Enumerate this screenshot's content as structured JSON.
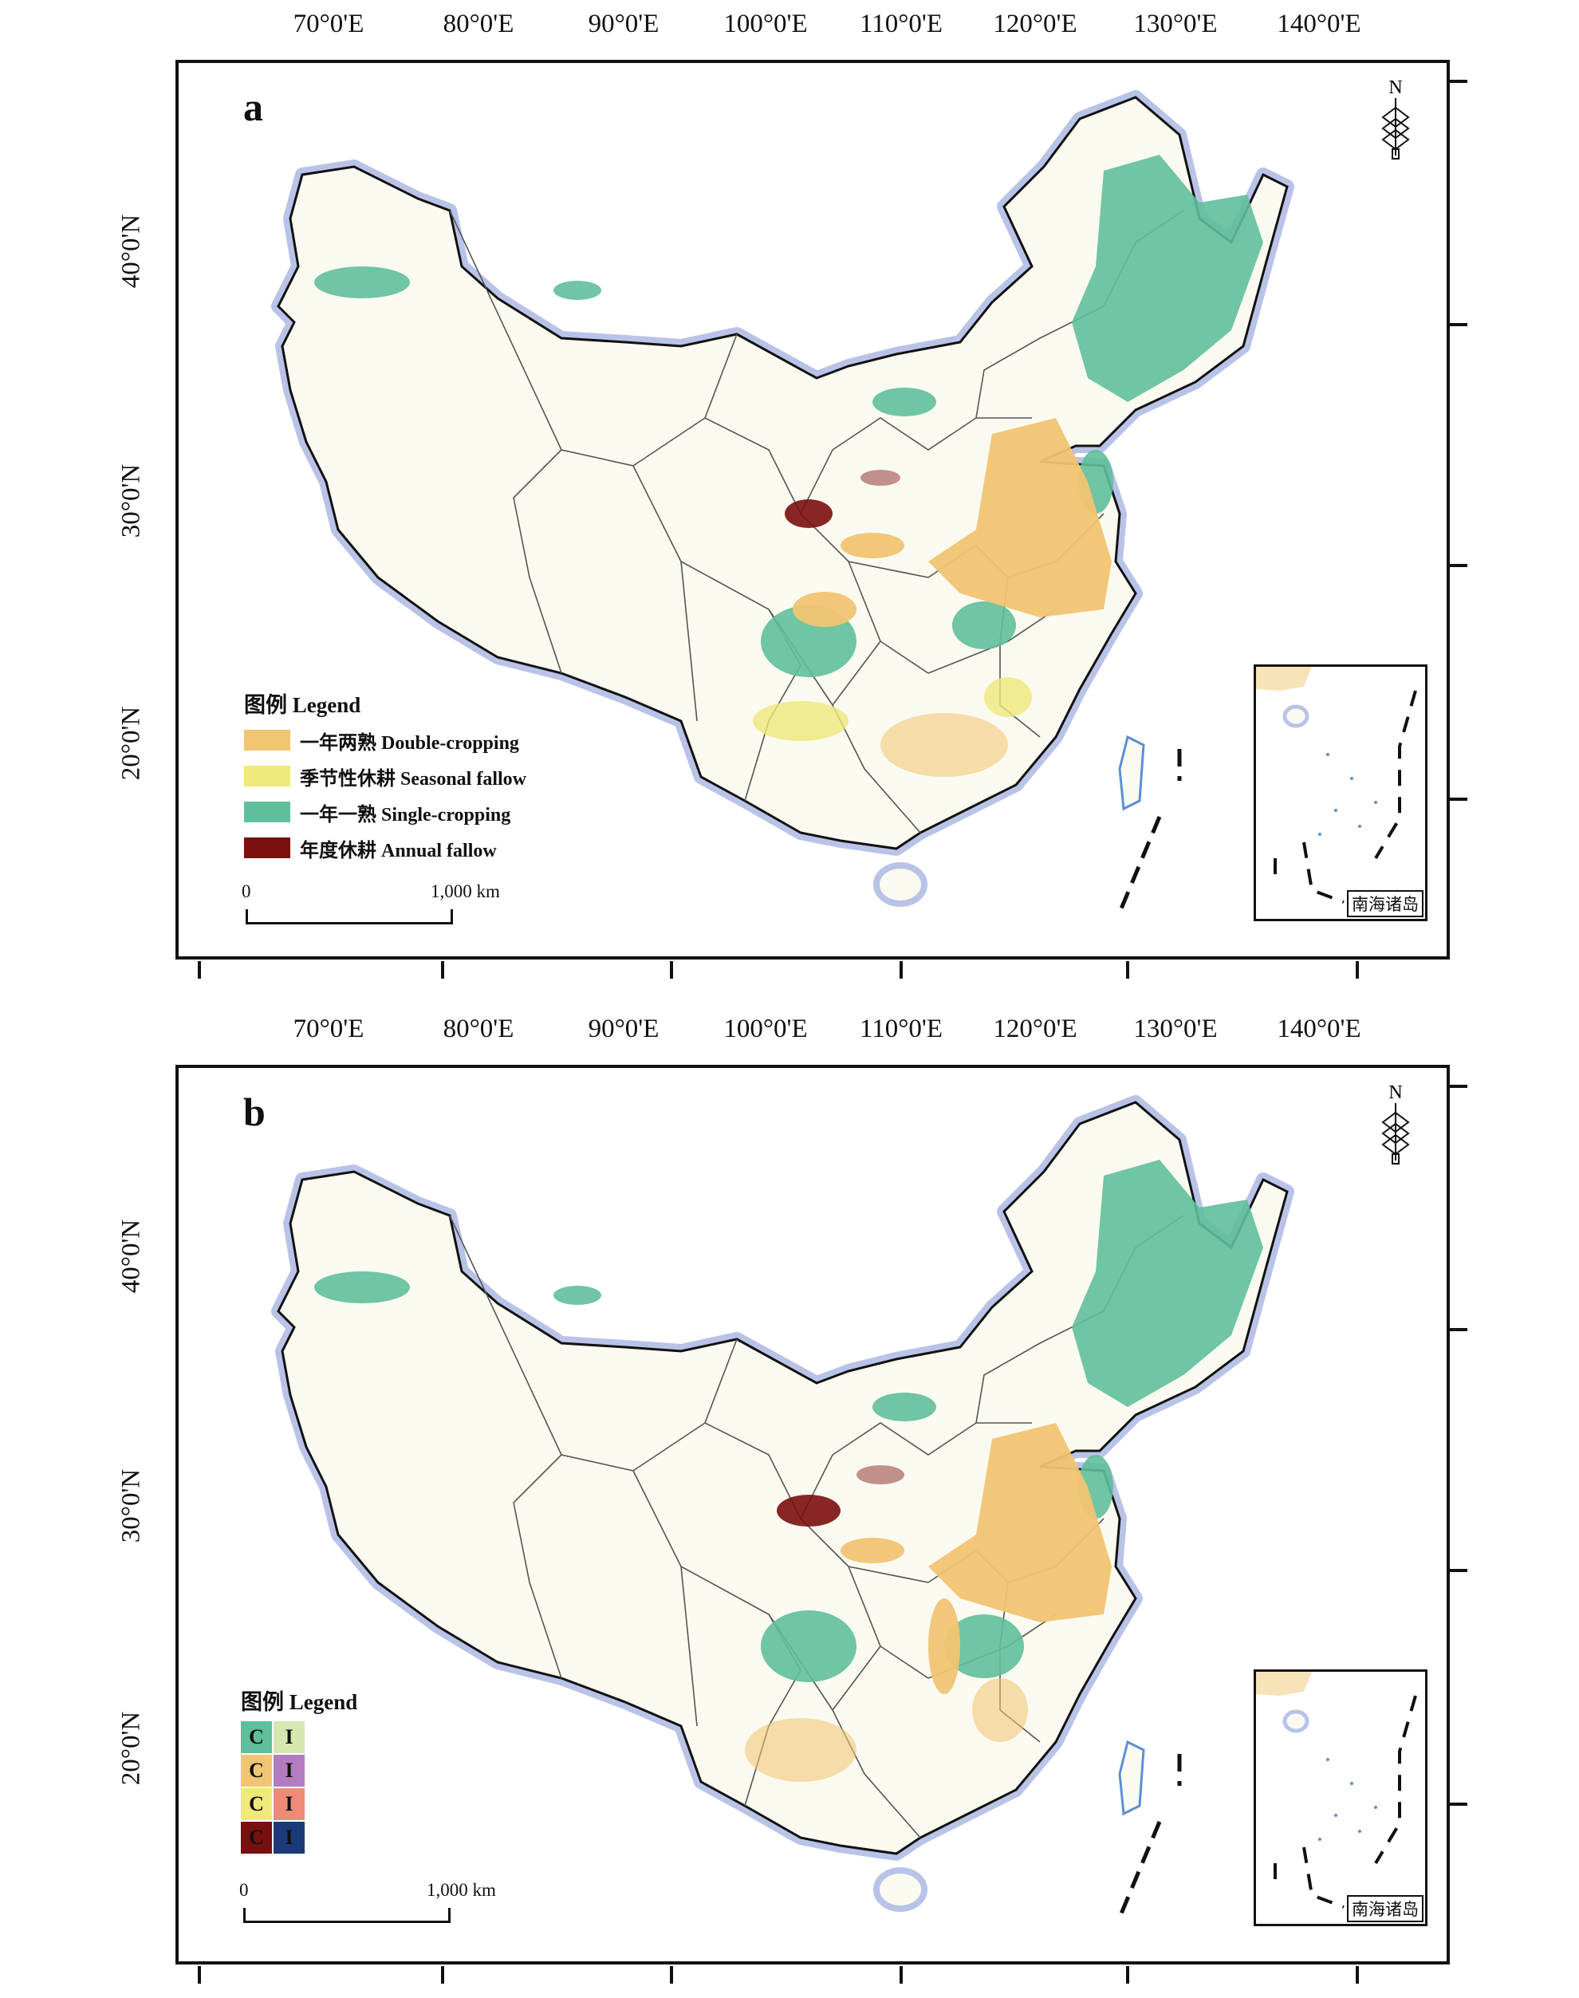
{
  "panels": [
    {
      "letter": "a",
      "lon_labels": [
        "70°0'E",
        "80°0'E",
        "90°0'E",
        "100°0'E",
        "110°0'E",
        "120°0'E",
        "130°0'E",
        "140°0'E"
      ],
      "lat_labels": [
        "40°0'N",
        "30°0'N",
        "20°0'N"
      ],
      "north_arrow": "N",
      "legend": {
        "title": "图例 Legend",
        "items": [
          {
            "label": "一年两熟 Double-cropping",
            "color": "#f2c572"
          },
          {
            "label": "季节性休耕 Seasonal fallow",
            "color": "#efe97a"
          },
          {
            "label": "一年一熟 Single-cropping",
            "color": "#5fbf9b"
          },
          {
            "label": "年度休耕 Annual fallow",
            "color": "#7a0f0f"
          }
        ]
      },
      "scale_bar": {
        "start": "0",
        "end": "1,000 km"
      },
      "inset_label": "南海诸岛"
    },
    {
      "letter": "b",
      "lon_labels": [
        "70°0'E",
        "80°0'E",
        "90°0'E",
        "100°0'E",
        "110°0'E",
        "120°0'E",
        "130°0'E",
        "140°0'E"
      ],
      "lat_labels": [
        "40°0'N",
        "30°0'N",
        "20°0'N"
      ],
      "north_arrow": "N",
      "legend": {
        "title": "图例 Legend",
        "grid": [
          [
            {
              "text": "C",
              "color": "#5fbf9b"
            },
            {
              "text": "I",
              "color": "#d6e7b0"
            }
          ],
          [
            {
              "text": "C",
              "color": "#f2c572"
            },
            {
              "text": "I",
              "color": "#b47cc0"
            }
          ],
          [
            {
              "text": "C",
              "color": "#efe97a"
            },
            {
              "text": "I",
              "color": "#ef8a78"
            }
          ],
          [
            {
              "text": "C",
              "color": "#7a0f0f"
            },
            {
              "text": "I",
              "color": "#1a3a7a"
            }
          ]
        ]
      },
      "scale_bar": {
        "start": "0",
        "end": "1,000 km"
      },
      "inset_label": "南海诸岛"
    }
  ],
  "colors": {
    "land": "#fbfaf1",
    "border_glow": "#b9c3e8",
    "boundary": "#111111",
    "province_line": "#555555",
    "sea_coast": "#5c8fd6"
  }
}
